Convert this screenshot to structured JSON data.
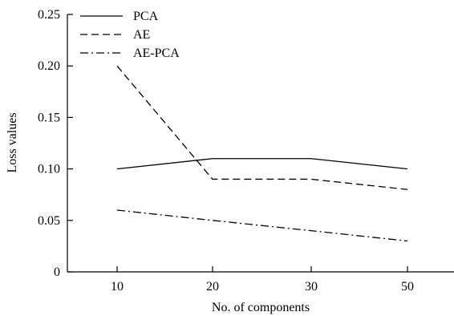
{
  "chart_data": {
    "type": "line",
    "categories": [
      "10",
      "20",
      "30",
      "50"
    ],
    "series": [
      {
        "name": "PCA",
        "values": [
          0.1,
          0.11,
          0.11,
          0.1
        ],
        "dash": "solid"
      },
      {
        "name": "AE",
        "values": [
          0.2,
          0.09,
          0.09,
          0.08
        ],
        "dash": "dashed"
      },
      {
        "name": "AE-PCA",
        "values": [
          0.06,
          0.05,
          0.04,
          0.03
        ],
        "dash": "dashdot"
      }
    ],
    "title": "",
    "xlabel": "No. of components",
    "ylabel": "Loss values",
    "ylim": [
      0,
      0.25
    ],
    "yticks": [
      "0",
      "0.05",
      "0.10",
      "0.15",
      "0.20",
      "0.25"
    ],
    "grid": false,
    "legend_position": "top-left"
  }
}
